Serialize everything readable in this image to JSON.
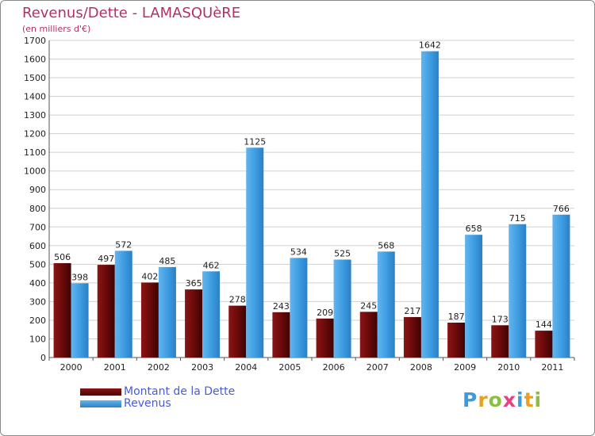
{
  "title": "Revenus/Dette - LAMASQUèRE",
  "subtitle": "(en milliers d'€)",
  "colors": {
    "dette": "#6b0a0a",
    "revenus": "#3c9be0",
    "grid": "#d0d0d0",
    "title": "#b0306a",
    "legend_text": "#4a5bd8"
  },
  "legend": {
    "dette": "Montant de la Dette",
    "revenus": "Revenus"
  },
  "logo": "Proxiti",
  "chart_data": {
    "type": "bar",
    "title": "Revenus/Dette - LAMASQUèRE",
    "ylabel": "(en milliers d'€)",
    "ylim": [
      0,
      1700
    ],
    "yticks": [
      0,
      100,
      200,
      300,
      400,
      500,
      600,
      700,
      800,
      900,
      1000,
      1100,
      1200,
      1300,
      1400,
      1500,
      1600,
      1700
    ],
    "grid": true,
    "legend_position": "bottom-left",
    "categories": [
      "2000",
      "2001",
      "2002",
      "2003",
      "2004",
      "2005",
      "2006",
      "2007",
      "2008",
      "2009",
      "2010",
      "2011"
    ],
    "series": [
      {
        "name": "Montant de la Dette",
        "values": [
          506,
          497,
          402,
          365,
          278,
          243,
          209,
          245,
          217,
          187,
          173,
          144
        ]
      },
      {
        "name": "Revenus",
        "values": [
          398,
          572,
          485,
          462,
          1125,
          534,
          525,
          568,
          1642,
          658,
          715,
          766
        ]
      }
    ]
  }
}
